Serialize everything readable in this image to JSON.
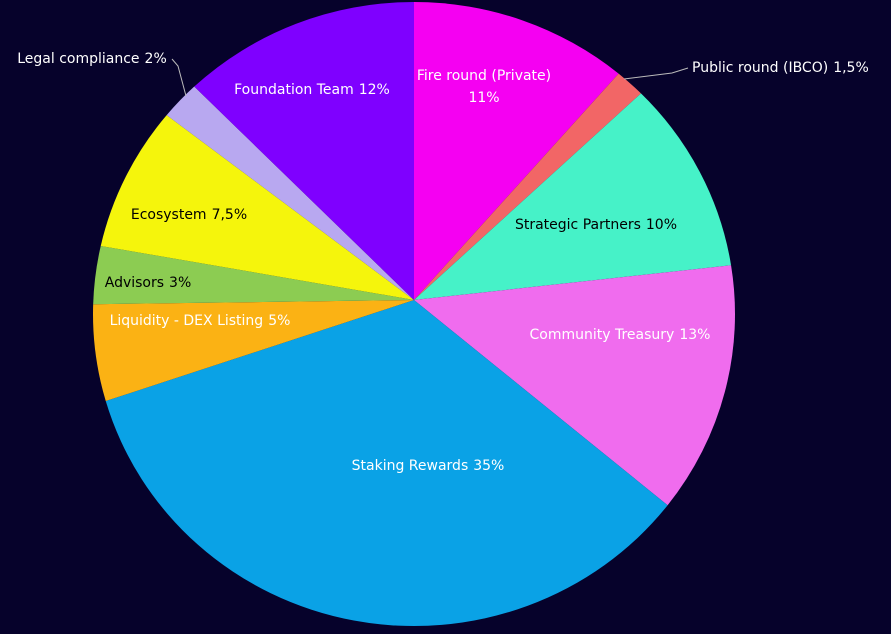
{
  "chart_data": {
    "type": "pie",
    "categories": [
      "Fire round (Private)",
      "Public round (IBCO)",
      "Strategic Partners",
      "Community Treasury",
      "Staking Rewards",
      "Liquidity - DEX Listing",
      "Advisors",
      "Ecosystem",
      "Legal compliance",
      "Foundation Team"
    ],
    "values": [
      11,
      1.5,
      10,
      13,
      35,
      5,
      3,
      7.5,
      2,
      12
    ],
    "value_labels": [
      "11%",
      "1,5%",
      "10%",
      "13%",
      "35%",
      "5%",
      "3%",
      "7,5%",
      "2%",
      "12%"
    ],
    "colors": [
      "#f500f2",
      "#f26666",
      "#46f2c8",
      "#f06cee",
      "#0aa2e6",
      "#fbb214",
      "#8ccc52",
      "#f5f50c",
      "#b8a8f0",
      "#7f00ff"
    ]
  }
}
